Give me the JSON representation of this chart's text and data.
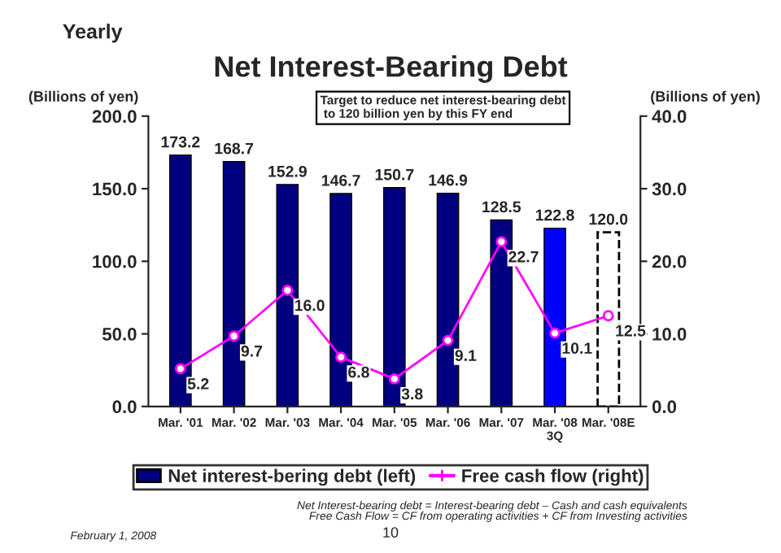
{
  "chart_data": {
    "type": "bar",
    "title": "Net Interest-Bearing Debt",
    "ylabel": "(Billions of yen)",
    "y2label": "(Billions of yen)",
    "categories": [
      "Mar. '01",
      "Mar. '02",
      "Mar. '03",
      "Mar. '04",
      "Mar. '05",
      "Mar. '06",
      "Mar. '07",
      "Mar. '08\n3Q",
      "Mar. '08E"
    ],
    "series": [
      {
        "name": "Net interest-bering debt (left)",
        "colors": [
          "#000080",
          "#000080",
          "#000080",
          "#000080",
          "#000080",
          "#000080",
          "#000080",
          "#0000ff",
          "#ffffff"
        ],
        "color": "#000080",
        "values": [
          173.2,
          168.7,
          152.9,
          146.7,
          150.7,
          146.9,
          128.5,
          122.8,
          120.0
        ],
        "value_labels": [
          "173.2",
          "168.7",
          "152.9",
          "146.7",
          "150.7",
          "146.9",
          "128.5",
          "122.8",
          "120.0"
        ]
      },
      {
        "name": "Free cash flow (right)",
        "type": "line",
        "axis": "y2",
        "color": "#ff00ff",
        "marker": "circle",
        "values": [
          5.2,
          9.7,
          16.0,
          6.8,
          3.8,
          9.1,
          22.7,
          10.1,
          12.5
        ],
        "value_labels": [
          "5.2",
          "9.7",
          "16.0",
          "6.8",
          "3.8",
          "9.1",
          "22.7",
          "10.1",
          "12.5"
        ]
      }
    ],
    "ylim": [
      0,
      200
    ],
    "yticks": [
      {
        "value": 0,
        "label": "0.0"
      },
      {
        "value": 50,
        "label": "50.0"
      },
      {
        "value": 100,
        "label": "100.0"
      },
      {
        "value": 150,
        "label": "150.0"
      },
      {
        "value": 200,
        "label": "200.0"
      }
    ],
    "y2lim": [
      0,
      40
    ],
    "y2ticks": [
      {
        "value": 0,
        "label": "0.0"
      },
      {
        "value": 10,
        "label": "10.0"
      },
      {
        "value": 20,
        "label": "20.0"
      },
      {
        "value": 30,
        "label": "30.0"
      },
      {
        "value": 40,
        "label": "40.0"
      }
    ],
    "legend": "bottom",
    "grid": false,
    "annotations": [
      "Yearly",
      "Target to reduce net interest-bearing debt\n to 120 billion yen by this FY end",
      "Net Interest-bearing debt = Interest-bearing debt – Cash and cash equivalents\nFree Cash Flow = CF from operating activities + CF from Investing activities",
      "February 1, 2008",
      "10"
    ]
  }
}
